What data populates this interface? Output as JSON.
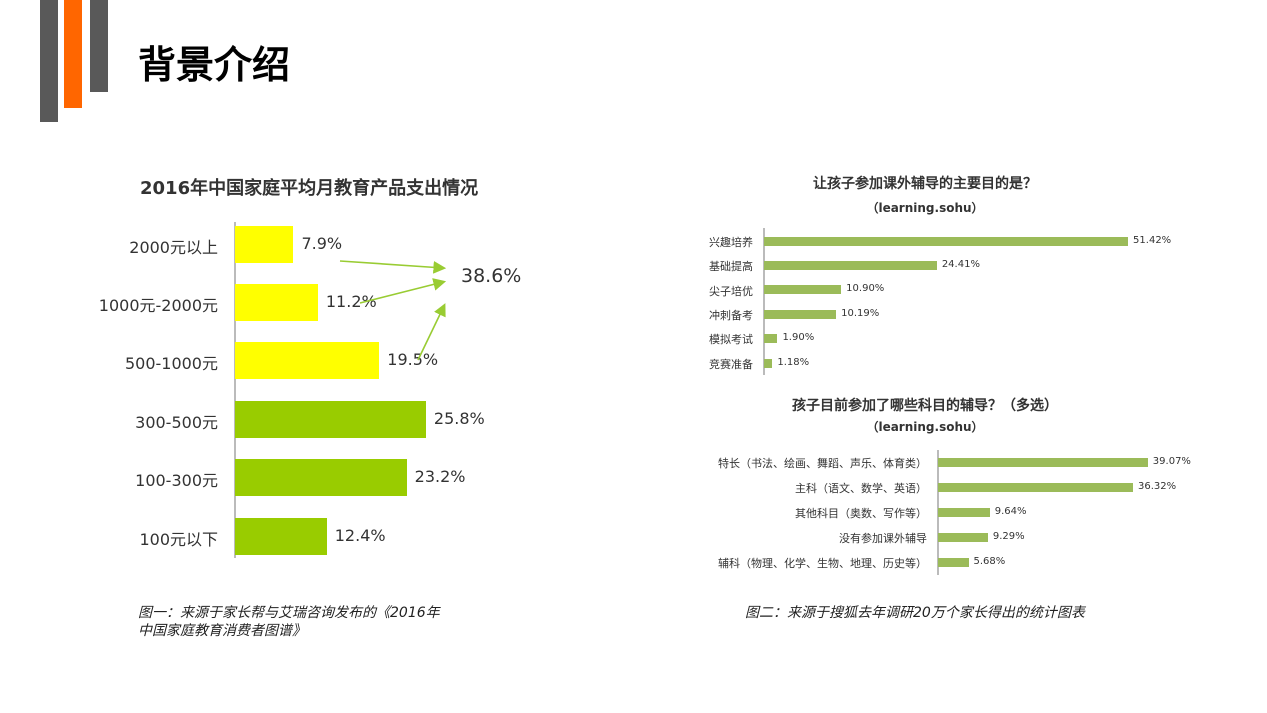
{
  "page": {
    "title": "背景介绍"
  },
  "colors": {
    "accent_orange": "#ff6600",
    "deco_gray": "#595959",
    "yellow": "#ffff00",
    "green_left": "#99cc00",
    "green_right": "#9bbb59"
  },
  "captions": {
    "left_line1": "图一：来源于家长帮与艾瑞咨询发布的《2016年",
    "left_line2": "中国家庭教育消费者图谱》",
    "right": "图二：来源于搜狐去年调研20万个家长得出的统计图表"
  },
  "chart_data": [
    {
      "type": "bar",
      "orientation": "horizontal",
      "title": "2016年中国家庭平均月教育产品支出情况",
      "categories": [
        "2000元以上",
        "1000元-2000元",
        "500-1000元",
        "300-500元",
        "100-300元",
        "100元以下"
      ],
      "values": [
        7.9,
        11.2,
        19.5,
        25.8,
        23.2,
        12.4
      ],
      "labels": [
        "7.9%",
        "11.2%",
        "19.5%",
        "25.8%",
        "23.2%",
        "12.4%"
      ],
      "bar_colors": [
        "#ffff00",
        "#ffff00",
        "#ffff00",
        "#99cc00",
        "#99cc00",
        "#99cc00"
      ],
      "annotation": {
        "text": "38.6%",
        "note_of": [
          "2000元以上",
          "1000元-2000元",
          "500-1000元"
        ]
      },
      "unit": "%"
    },
    {
      "type": "bar",
      "orientation": "horizontal",
      "title": "让孩子参加课外辅导的主要目的是？",
      "subtitle": "（learning.sohu）",
      "categories": [
        "兴趣培养",
        "基础提高",
        "尖子培优",
        "冲刺备考",
        "模拟考试",
        "竞赛准备"
      ],
      "values": [
        51.42,
        24.41,
        10.9,
        10.19,
        1.9,
        1.18
      ],
      "labels": [
        "51.42%",
        "24.41%",
        "10.90%",
        "10.19%",
        "1.90%",
        "1.18%"
      ],
      "unit": "%"
    },
    {
      "type": "bar",
      "orientation": "horizontal",
      "title": "孩子目前参加了哪些科目的辅导？（多选）",
      "subtitle": "（learning.sohu）",
      "categories": [
        "特长（书法、绘画、舞蹈、声乐、体育类）",
        "主科（语文、数学、英语）",
        "其他科目（奥数、写作等）",
        "没有参加课外辅导",
        "辅科（物理、化学、生物、地理、历史等）"
      ],
      "values": [
        39.07,
        36.32,
        9.64,
        9.29,
        5.68
      ],
      "labels": [
        "39.07%",
        "36.32%",
        "9.64%",
        "9.29%",
        "5.68%"
      ],
      "unit": "%"
    }
  ]
}
